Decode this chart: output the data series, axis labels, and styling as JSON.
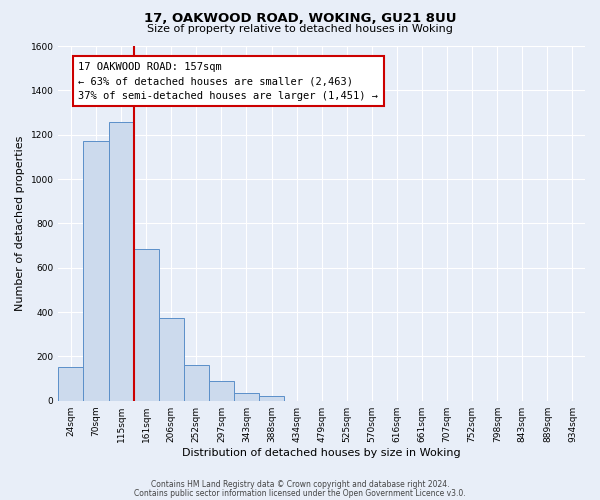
{
  "title1": "17, OAKWOOD ROAD, WOKING, GU21 8UU",
  "title2": "Size of property relative to detached houses in Woking",
  "xlabel": "Distribution of detached houses by size in Woking",
  "ylabel": "Number of detached properties",
  "bar_labels": [
    "24sqm",
    "70sqm",
    "115sqm",
    "161sqm",
    "206sqm",
    "252sqm",
    "297sqm",
    "343sqm",
    "388sqm",
    "434sqm",
    "479sqm",
    "525sqm",
    "570sqm",
    "616sqm",
    "661sqm",
    "707sqm",
    "752sqm",
    "798sqm",
    "843sqm",
    "889sqm",
    "934sqm"
  ],
  "bar_values": [
    150,
    1170,
    1255,
    685,
    375,
    160,
    90,
    35,
    20,
    0,
    0,
    0,
    0,
    0,
    0,
    0,
    0,
    0,
    0,
    0,
    0
  ],
  "bar_color": "#ccdaed",
  "bar_edge_color": "#5b8fc9",
  "annotation_line1": "17 OAKWOOD ROAD: 157sqm",
  "annotation_line2": "← 63% of detached houses are smaller (2,463)",
  "annotation_line3": "37% of semi-detached houses are larger (1,451) →",
  "vline_color": "#cc0000",
  "ylim": [
    0,
    1600
  ],
  "yticks": [
    0,
    200,
    400,
    600,
    800,
    1000,
    1200,
    1400,
    1600
  ],
  "footer1": "Contains HM Land Registry data © Crown copyright and database right 2024.",
  "footer2": "Contains public sector information licensed under the Open Government Licence v3.0.",
  "background_color": "#e8eef8",
  "plot_bg_color": "#e8eef8",
  "grid_color": "#ffffff",
  "vline_xindex": 2.5
}
